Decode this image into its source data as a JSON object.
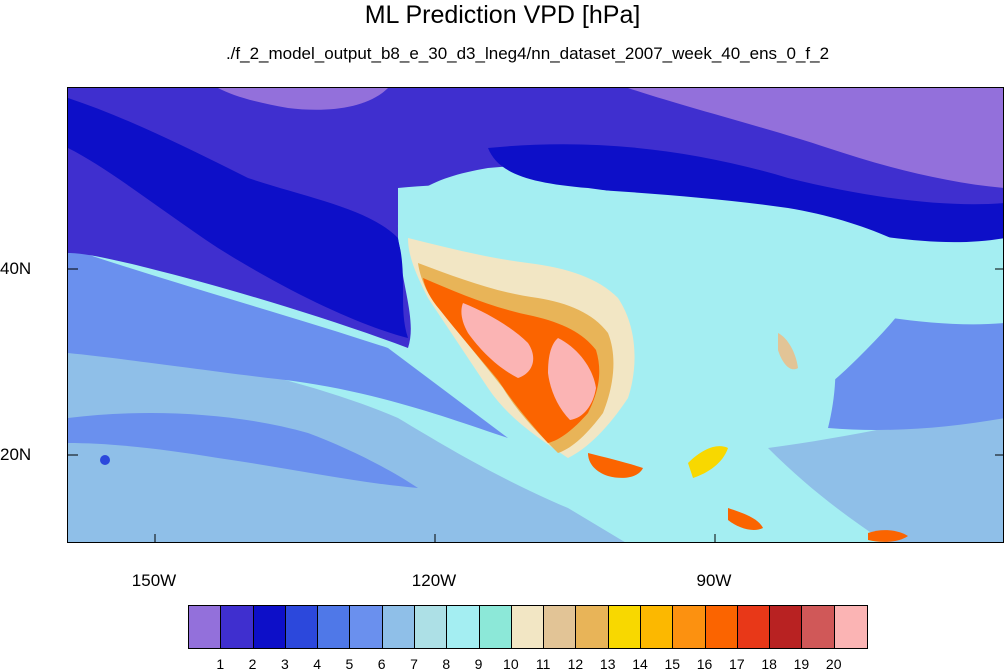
{
  "title": "ML Prediction VPD [hPa]",
  "subtitle": "./f_2_model_output_b8_e_30_d3_lneg4/nn_dataset_2007_week_40_ens_0_f_2",
  "lon_labels": [
    "150W",
    "120W",
    "90W"
  ],
  "lat_labels": [
    "40N",
    "20N"
  ],
  "colorbar": {
    "labels": [
      "1",
      "2",
      "3",
      "4",
      "5",
      "6",
      "7",
      "8",
      "9",
      "10",
      "11",
      "12",
      "13",
      "14",
      "15",
      "16",
      "17",
      "18",
      "19",
      "20"
    ],
    "colors": [
      "#9370db",
      "#3f2fcf",
      "#0d0fc8",
      "#2c48dc",
      "#4f78e8",
      "#6a90ee",
      "#8fbfe8",
      "#ade0e6",
      "#a4eef2",
      "#8ce8d8",
      "#f2e6c4",
      "#e2c496",
      "#e8b458",
      "#f8d800",
      "#fcb800",
      "#fc9110",
      "#fb6400",
      "#e83818",
      "#b82222",
      "#d05858",
      "#fbb4b4"
    ]
  },
  "map_colors": {
    "ocean_far": "#a4eef2",
    "ocean_mid": "#8fbfe8",
    "ocean_deep": "#6a90ee",
    "north_pacific": "#3f2fcf",
    "coast_band": "#0d0fc8",
    "arctic": "#9370db",
    "land_humid": "#a4eef2",
    "desert_warm": "#f2e6c4",
    "desert_hot": "#fb6400",
    "desert_hottest": "#fbb4b4"
  }
}
